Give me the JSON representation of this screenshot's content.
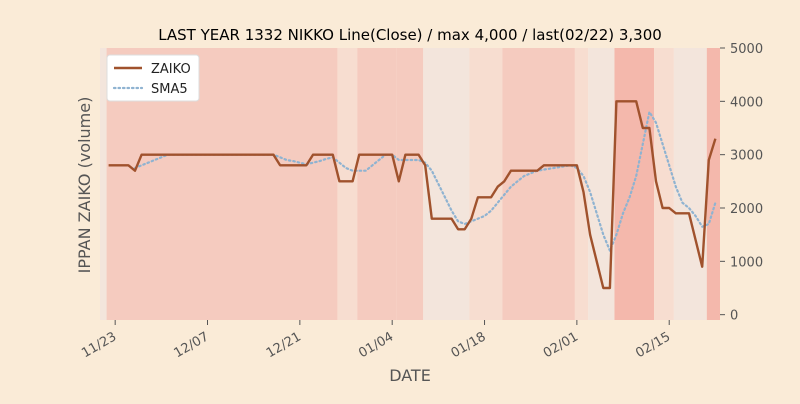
{
  "chart_data": {
    "type": "line",
    "title": "LAST YEAR 1332 NIKKO Line(Close) / max 4,000 / last(02/22) 3,300",
    "xlabel": "DATE",
    "ylabel": "IPPAN ZAIKO (volume)",
    "ylim": [
      -100,
      5000
    ],
    "yticks": [
      0,
      1000,
      2000,
      3000,
      4000,
      5000
    ],
    "xticks": [
      {
        "label": "11/23",
        "x": 2.0
      },
      {
        "label": "12/07",
        "x": 16.0
      },
      {
        "label": "12/21",
        "x": 30.0
      },
      {
        "label": "01/04",
        "x": 44.0
      },
      {
        "label": "01/18",
        "x": 58.0
      },
      {
        "label": "02/01",
        "x": 72.0
      },
      {
        "label": "02/15",
        "x": 86.0
      }
    ],
    "xlim": [
      -0.3,
      93.7
    ],
    "grid": false,
    "legend_position": "top-left",
    "colors": {
      "background": "#faebd7",
      "plot_background": "#fbf0e4",
      "zaiko": "#a0522d",
      "sma5": "#8fb3d1",
      "band_light": "#f7ddd0",
      "band_medium": "#f5cbbf",
      "band_dark": "#f4b8ac",
      "band_pale": "#f3e5dc"
    },
    "bands": [
      {
        "x0": -0.3,
        "x1": 0.7,
        "level": "pale"
      },
      {
        "x0": 0.7,
        "x1": 35.7,
        "level": "medium"
      },
      {
        "x0": 35.7,
        "x1": 38.7,
        "level": "light"
      },
      {
        "x0": 38.7,
        "x1": 44.7,
        "level": "medium"
      },
      {
        "x0": 44.7,
        "x1": 48.7,
        "level": "medium"
      },
      {
        "x0": 48.7,
        "x1": 55.7,
        "level": "pale"
      },
      {
        "x0": 55.7,
        "x1": 60.7,
        "level": "light"
      },
      {
        "x0": 60.7,
        "x1": 71.7,
        "level": "medium"
      },
      {
        "x0": 71.7,
        "x1": 73.7,
        "level": "light"
      },
      {
        "x0": 73.7,
        "x1": 77.7,
        "level": "pale"
      },
      {
        "x0": 77.7,
        "x1": 83.7,
        "level": "dark"
      },
      {
        "x0": 83.7,
        "x1": 86.7,
        "level": "light"
      },
      {
        "x0": 86.7,
        "x1": 91.7,
        "level": "pale"
      },
      {
        "x0": 91.7,
        "x1": 93.7,
        "level": "dark"
      }
    ],
    "series": [
      {
        "name": "ZAIKO",
        "style": "solid",
        "points": [
          [
            1,
            2800
          ],
          [
            2,
            2800
          ],
          [
            3,
            2800
          ],
          [
            4,
            2800
          ],
          [
            5,
            2700
          ],
          [
            6,
            3000
          ],
          [
            7,
            3000
          ],
          [
            8,
            3000
          ],
          [
            9,
            3000
          ],
          [
            10,
            3000
          ],
          [
            11,
            3000
          ],
          [
            12,
            3000
          ],
          [
            13,
            3000
          ],
          [
            14,
            3000
          ],
          [
            15,
            3000
          ],
          [
            16,
            3000
          ],
          [
            17,
            3000
          ],
          [
            18,
            3000
          ],
          [
            19,
            3000
          ],
          [
            20,
            3000
          ],
          [
            21,
            3000
          ],
          [
            22,
            3000
          ],
          [
            23,
            3000
          ],
          [
            24,
            3000
          ],
          [
            25,
            3000
          ],
          [
            26,
            3000
          ],
          [
            27,
            2800
          ],
          [
            28,
            2800
          ],
          [
            29,
            2800
          ],
          [
            30,
            2800
          ],
          [
            31,
            2800
          ],
          [
            32,
            3000
          ],
          [
            33,
            3000
          ],
          [
            34,
            3000
          ],
          [
            35,
            3000
          ],
          [
            36,
            2500
          ],
          [
            37,
            2500
          ],
          [
            38,
            2500
          ],
          [
            39,
            3000
          ],
          [
            40,
            3000
          ],
          [
            41,
            3000
          ],
          [
            42,
            3000
          ],
          [
            43,
            3000
          ],
          [
            44,
            3000
          ],
          [
            45,
            2500
          ],
          [
            46,
            3000
          ],
          [
            47,
            3000
          ],
          [
            48,
            3000
          ],
          [
            49,
            2800
          ],
          [
            50,
            1800
          ],
          [
            51,
            1800
          ],
          [
            52,
            1800
          ],
          [
            53,
            1800
          ],
          [
            54,
            1600
          ],
          [
            55,
            1600
          ],
          [
            56,
            1800
          ],
          [
            57,
            2200
          ],
          [
            58,
            2200
          ],
          [
            59,
            2200
          ],
          [
            60,
            2400
          ],
          [
            61,
            2500
          ],
          [
            62,
            2700
          ],
          [
            63,
            2700
          ],
          [
            64,
            2700
          ],
          [
            65,
            2700
          ],
          [
            66,
            2700
          ],
          [
            67,
            2800
          ],
          [
            68,
            2800
          ],
          [
            69,
            2800
          ],
          [
            70,
            2800
          ],
          [
            71,
            2800
          ],
          [
            72,
            2800
          ],
          [
            73,
            2300
          ],
          [
            74,
            1500
          ],
          [
            75,
            1000
          ],
          [
            76,
            500
          ],
          [
            77,
            500
          ],
          [
            78,
            4000
          ],
          [
            79,
            4000
          ],
          [
            80,
            4000
          ],
          [
            81,
            4000
          ],
          [
            82,
            3500
          ],
          [
            83,
            3500
          ],
          [
            84,
            2500
          ],
          [
            85,
            2000
          ],
          [
            86,
            2000
          ],
          [
            87,
            1900
          ],
          [
            88,
            1900
          ],
          [
            89,
            1900
          ],
          [
            90,
            1400
          ],
          [
            91,
            900
          ],
          [
            92,
            2900
          ],
          [
            93,
            3300
          ]
        ]
      },
      {
        "name": "SMA5",
        "style": "dotted",
        "points": [
          [
            5,
            2750
          ],
          [
            6,
            2800
          ],
          [
            7,
            2850
          ],
          [
            8,
            2900
          ],
          [
            9,
            2950
          ],
          [
            10,
            3000
          ],
          [
            11,
            3000
          ],
          [
            12,
            3000
          ],
          [
            13,
            3000
          ],
          [
            14,
            3000
          ],
          [
            15,
            3000
          ],
          [
            16,
            3000
          ],
          [
            17,
            3000
          ],
          [
            18,
            3000
          ],
          [
            19,
            3000
          ],
          [
            20,
            3000
          ],
          [
            21,
            3000
          ],
          [
            22,
            3000
          ],
          [
            23,
            3000
          ],
          [
            24,
            3000
          ],
          [
            25,
            3000
          ],
          [
            26,
            3000
          ],
          [
            27,
            2950
          ],
          [
            28,
            2900
          ],
          [
            29,
            2880
          ],
          [
            30,
            2850
          ],
          [
            31,
            2820
          ],
          [
            32,
            2850
          ],
          [
            33,
            2880
          ],
          [
            34,
            2920
          ],
          [
            35,
            2950
          ],
          [
            36,
            2850
          ],
          [
            37,
            2750
          ],
          [
            38,
            2700
          ],
          [
            39,
            2700
          ],
          [
            40,
            2700
          ],
          [
            41,
            2800
          ],
          [
            42,
            2900
          ],
          [
            43,
            3000
          ],
          [
            44,
            3000
          ],
          [
            45,
            2900
          ],
          [
            46,
            2900
          ],
          [
            47,
            2900
          ],
          [
            48,
            2900
          ],
          [
            49,
            2850
          ],
          [
            50,
            2700
          ],
          [
            51,
            2450
          ],
          [
            52,
            2200
          ],
          [
            53,
            1950
          ],
          [
            54,
            1750
          ],
          [
            55,
            1700
          ],
          [
            56,
            1750
          ],
          [
            57,
            1800
          ],
          [
            58,
            1850
          ],
          [
            59,
            1950
          ],
          [
            60,
            2100
          ],
          [
            61,
            2250
          ],
          [
            62,
            2400
          ],
          [
            63,
            2500
          ],
          [
            64,
            2600
          ],
          [
            65,
            2650
          ],
          [
            66,
            2700
          ],
          [
            67,
            2720
          ],
          [
            68,
            2740
          ],
          [
            69,
            2760
          ],
          [
            70,
            2780
          ],
          [
            71,
            2800
          ],
          [
            72,
            2750
          ],
          [
            73,
            2600
          ],
          [
            74,
            2300
          ],
          [
            75,
            1900
          ],
          [
            76,
            1500
          ],
          [
            77,
            1200
          ],
          [
            78,
            1500
          ],
          [
            79,
            1900
          ],
          [
            80,
            2200
          ],
          [
            81,
            2600
          ],
          [
            82,
            3200
          ],
          [
            83,
            3800
          ],
          [
            84,
            3600
          ],
          [
            85,
            3200
          ],
          [
            86,
            2800
          ],
          [
            87,
            2400
          ],
          [
            88,
            2100
          ],
          [
            89,
            2000
          ],
          [
            90,
            1850
          ],
          [
            91,
            1650
          ],
          [
            92,
            1700
          ],
          [
            93,
            2100
          ]
        ]
      }
    ]
  }
}
